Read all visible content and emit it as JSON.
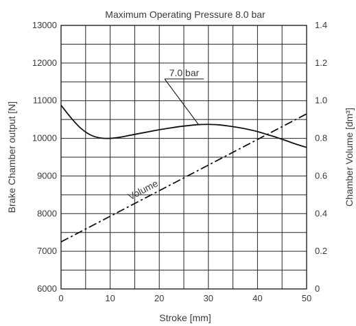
{
  "chart_data": {
    "type": "line",
    "title": "Maximum Operating Pressure 8.0 bar",
    "xlabel": "Stroke [mm]",
    "ylabel": "Brake Chamber output [N]",
    "y2label": "Chamber Volume [dm³]",
    "xlim": [
      0,
      50
    ],
    "ylim": [
      6000,
      13000
    ],
    "y2lim": [
      0,
      1.4
    ],
    "grid": true,
    "x_ticks": [
      "0",
      "10",
      "20",
      "30",
      "40",
      "50"
    ],
    "y_ticks": [
      "6000",
      "7000",
      "8000",
      "9000",
      "10000",
      "11000",
      "12000",
      "13000"
    ],
    "y2_ticks": [
      "0",
      "0.2",
      "0.4",
      "0.6",
      "0.8",
      "1.0",
      "1.2",
      "1.4"
    ],
    "series": [
      {
        "name": "7.0 bar",
        "axis": "left",
        "style": "solid",
        "x": [
          0,
          2,
          4,
          6,
          8,
          10,
          12,
          14,
          16,
          18,
          20,
          22,
          24,
          26,
          28,
          30,
          32,
          34,
          36,
          38,
          40,
          42,
          44,
          46,
          48,
          50
        ],
        "y": [
          10880,
          10550,
          10270,
          10090,
          10010,
          10000,
          10030,
          10080,
          10130,
          10180,
          10230,
          10270,
          10310,
          10340,
          10365,
          10370,
          10360,
          10330,
          10290,
          10240,
          10180,
          10100,
          10020,
          9930,
          9840,
          9760
        ]
      },
      {
        "name": "Volume",
        "axis": "right",
        "style": "dashdot",
        "x": [
          0,
          50
        ],
        "y": [
          0.25,
          0.93
        ]
      }
    ],
    "annotations": [
      {
        "text": "7.0 bar",
        "points_to": {
          "x": 28,
          "y": 10365
        }
      },
      {
        "text": "Volume",
        "along_series": "Volume"
      }
    ]
  }
}
